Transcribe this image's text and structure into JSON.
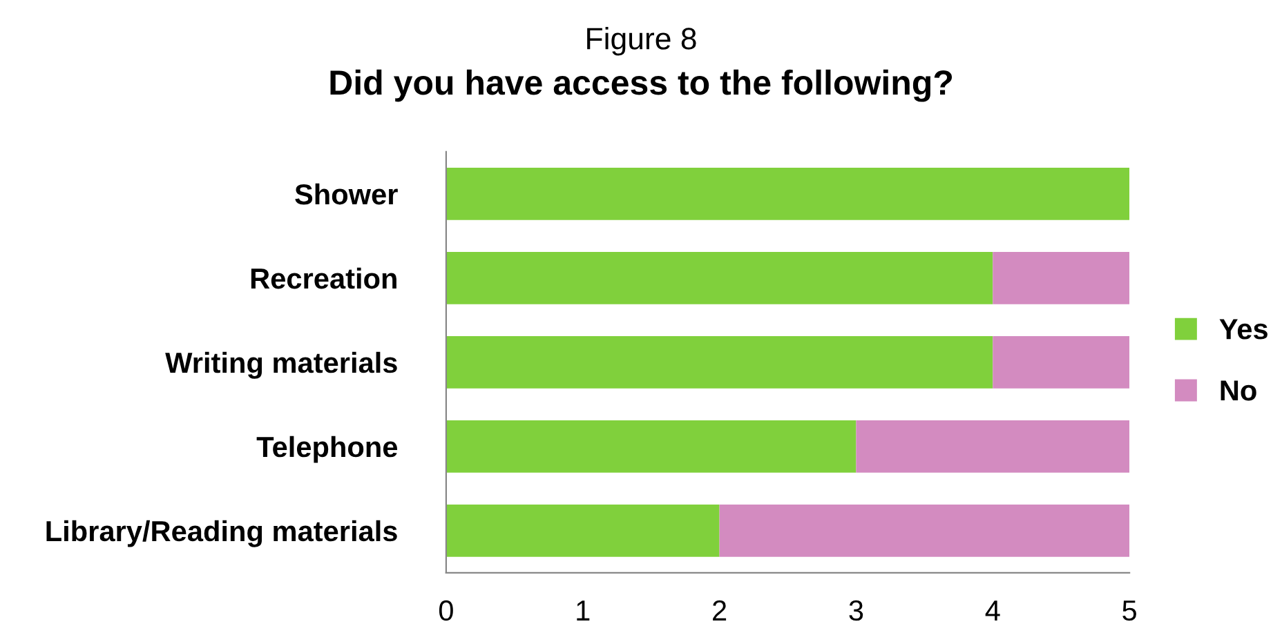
{
  "chart_data": {
    "type": "bar",
    "orientation": "horizontal",
    "stacked": true,
    "subtitle": "Figure 8",
    "title": "Did you have access to the following?",
    "categories": [
      "Shower",
      "Recreation",
      "Writing materials",
      "Telephone",
      "Library/Reading materials"
    ],
    "series": [
      {
        "name": "Yes",
        "color": "#80d03c",
        "values": [
          5,
          4,
          4,
          3,
          2
        ]
      },
      {
        "name": "No",
        "color": "#d38bc0",
        "values": [
          0,
          1,
          1,
          2,
          3
        ]
      }
    ],
    "xlim": [
      0,
      5
    ],
    "xticks": [
      0,
      1,
      2,
      3,
      4,
      5
    ],
    "grid": false,
    "legend": "right"
  }
}
